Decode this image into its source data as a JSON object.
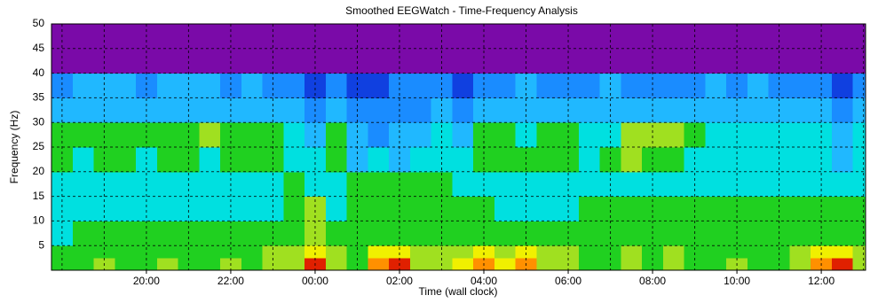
{
  "chart_data": {
    "type": "heatmap",
    "title": "Smoothed EEGWatch  -  Time-Frequency Analysis",
    "x_label": "Time (wall clock)",
    "y_label": "Frequency (Hz)",
    "xlim": [
      17.75,
      37.05
    ],
    "ylim": [
      0,
      50
    ],
    "xticks": [
      {
        "value": 20,
        "label": "20:00"
      },
      {
        "value": 22,
        "label": "22:00"
      },
      {
        "value": 24,
        "label": "00:00"
      },
      {
        "value": 26,
        "label": "02:00"
      },
      {
        "value": 28,
        "label": "04:00"
      },
      {
        "value": 30,
        "label": "06:00"
      },
      {
        "value": 32,
        "label": "08:00"
      },
      {
        "value": 34,
        "label": "10:00"
      },
      {
        "value": 36,
        "label": "12:00"
      }
    ],
    "xgrid": [
      18,
      19,
      20,
      21,
      22,
      23,
      24,
      25,
      26,
      27,
      28,
      29,
      30,
      31,
      32,
      33,
      34,
      35,
      36,
      37
    ],
    "yticks": [
      5,
      10,
      15,
      20,
      25,
      30,
      35,
      40,
      45,
      50
    ],
    "grid": true,
    "xbins": [
      17.75,
      18.25,
      18.75,
      19.25,
      19.75,
      20.25,
      20.75,
      21.25,
      21.75,
      22.25,
      22.75,
      23.25,
      23.75,
      24.25,
      24.75,
      25.25,
      25.75,
      26.25,
      26.75,
      27.25,
      27.75,
      28.25,
      28.75,
      29.25,
      29.75,
      30.25,
      30.75,
      31.25,
      31.75,
      32.25,
      32.75,
      33.25,
      33.75,
      34.25,
      34.75,
      35.25,
      35.75,
      36.25,
      36.75,
      37.25
    ],
    "ybins": [
      0,
      2.5,
      5,
      10,
      15,
      20,
      25,
      30,
      35,
      40,
      50
    ],
    "colorscale": [
      "#7a0aa8",
      "#1040e0",
      "#1a8cff",
      "#20b8ff",
      "#00e0e0",
      "#20d020",
      "#a0e020",
      "#f0f000",
      "#ff9000",
      "#e02000"
    ],
    "z": [
      [
        5,
        5,
        6,
        5,
        5,
        6,
        5,
        5,
        6,
        5,
        6,
        6,
        9,
        6,
        5,
        8,
        9,
        6,
        6,
        7,
        8,
        7,
        8,
        6,
        6,
        5,
        5,
        6,
        5,
        6,
        5,
        5,
        6,
        5,
        5,
        6,
        8,
        9,
        6
      ],
      [
        5,
        5,
        5,
        5,
        5,
        5,
        5,
        5,
        5,
        5,
        6,
        6,
        7,
        6,
        5,
        7,
        7,
        6,
        6,
        6,
        7,
        6,
        7,
        6,
        6,
        5,
        5,
        6,
        5,
        6,
        5,
        5,
        5,
        5,
        5,
        6,
        7,
        7,
        6
      ],
      [
        4,
        5,
        5,
        5,
        5,
        5,
        5,
        5,
        5,
        5,
        5,
        5,
        6,
        5,
        5,
        5,
        5,
        5,
        5,
        5,
        5,
        5,
        5,
        5,
        5,
        5,
        5,
        5,
        5,
        5,
        5,
        5,
        5,
        5,
        5,
        5,
        5,
        5,
        5
      ],
      [
        4,
        4,
        4,
        4,
        4,
        4,
        4,
        4,
        4,
        4,
        4,
        5,
        6,
        4,
        5,
        5,
        5,
        5,
        5,
        5,
        5,
        4,
        4,
        4,
        4,
        5,
        5,
        5,
        5,
        5,
        5,
        5,
        5,
        5,
        5,
        5,
        5,
        5,
        5
      ],
      [
        4,
        4,
        4,
        4,
        4,
        4,
        4,
        4,
        4,
        4,
        4,
        5,
        4,
        4,
        5,
        5,
        5,
        5,
        5,
        4,
        4,
        4,
        4,
        4,
        4,
        4,
        4,
        4,
        4,
        4,
        4,
        4,
        4,
        4,
        4,
        4,
        4,
        4,
        4
      ],
      [
        5,
        4,
        5,
        5,
        4,
        5,
        5,
        4,
        5,
        5,
        5,
        4,
        4,
        5,
        3,
        4,
        3,
        4,
        4,
        4,
        5,
        5,
        5,
        5,
        5,
        4,
        5,
        6,
        5,
        5,
        4,
        4,
        4,
        4,
        4,
        4,
        4,
        3,
        4
      ],
      [
        5,
        5,
        5,
        5,
        5,
        5,
        5,
        6,
        5,
        5,
        5,
        4,
        3,
        5,
        3,
        2,
        3,
        3,
        4,
        3,
        5,
        5,
        4,
        5,
        5,
        4,
        4,
        6,
        6,
        6,
        5,
        4,
        4,
        4,
        4,
        4,
        4,
        3,
        4
      ],
      [
        3,
        3,
        3,
        3,
        3,
        3,
        3,
        3,
        3,
        3,
        3,
        3,
        2,
        3,
        2,
        2,
        2,
        2,
        3,
        2,
        3,
        3,
        3,
        3,
        3,
        3,
        3,
        3,
        3,
        3,
        3,
        3,
        3,
        3,
        3,
        3,
        3,
        2,
        3
      ],
      [
        2,
        3,
        3,
        3,
        2,
        3,
        3,
        3,
        2,
        3,
        2,
        2,
        1,
        2,
        1,
        1,
        2,
        2,
        2,
        1,
        2,
        2,
        3,
        2,
        2,
        2,
        3,
        2,
        2,
        2,
        2,
        3,
        2,
        3,
        2,
        2,
        2,
        1,
        2
      ],
      [
        0,
        0,
        0,
        0,
        0,
        0,
        0,
        0,
        0,
        0,
        0,
        0,
        0,
        0,
        0,
        0,
        0,
        0,
        0,
        0,
        0,
        0,
        0,
        0,
        0,
        0,
        0,
        0,
        0,
        0,
        0,
        0,
        0,
        0,
        0,
        0,
        0,
        0,
        0
      ]
    ]
  }
}
